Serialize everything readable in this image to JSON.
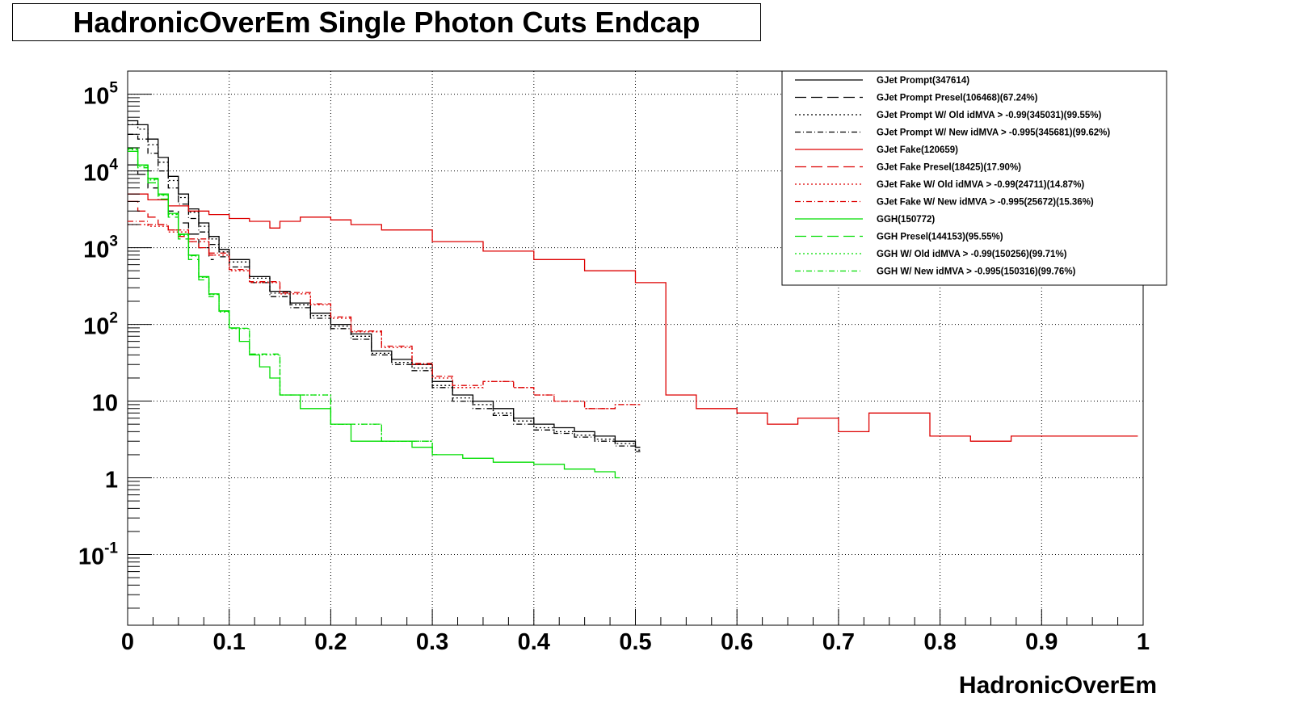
{
  "chart_data": {
    "type": "line",
    "title": "HadronicOverEm Single Photon Cuts Endcap",
    "xlabel": "HadronicOverEm",
    "ylabel": "",
    "xlim": [
      0,
      1
    ],
    "ylim": [
      0.012,
      200000
    ],
    "y_scale": "log",
    "grid": true,
    "legend_position": "top-right",
    "x_ticks": [
      "0",
      "0.1",
      "0.2",
      "0.3",
      "0.4",
      "0.5",
      "0.6",
      "0.7",
      "0.8",
      "0.9",
      "1"
    ],
    "y_ticks": [
      {
        "value": 0.1,
        "base": "10",
        "exp": "-1"
      },
      {
        "value": 1,
        "base": "1",
        "exp": ""
      },
      {
        "value": 10,
        "base": "10",
        "exp": ""
      },
      {
        "value": 100,
        "base": "10",
        "exp": "2"
      },
      {
        "value": 1000,
        "base": "10",
        "exp": "3"
      },
      {
        "value": 10000,
        "base": "10",
        "exp": "4"
      },
      {
        "value": 100000,
        "base": "10",
        "exp": "5"
      }
    ],
    "series": [
      {
        "name": "GJet Prompt(347614)",
        "color": "#000000",
        "dash": "solid",
        "x": [
          0.0,
          0.01,
          0.02,
          0.03,
          0.04,
          0.05,
          0.06,
          0.07,
          0.08,
          0.09,
          0.1,
          0.12,
          0.14,
          0.16,
          0.18,
          0.2,
          0.22,
          0.24,
          0.26,
          0.28,
          0.3,
          0.32,
          0.34,
          0.36,
          0.38,
          0.4,
          0.42,
          0.44,
          0.46,
          0.48,
          0.5
        ],
        "y": [
          45000,
          40000,
          26000,
          15000,
          8500,
          5000,
          3200,
          2100,
          1400,
          950,
          700,
          420,
          270,
          190,
          140,
          100,
          75,
          45,
          35,
          30,
          18,
          12,
          10,
          8,
          6,
          5,
          4.5,
          4,
          3.5,
          3,
          2.5
        ]
      },
      {
        "name": "GJet Prompt Presel(106468)(67.24%)",
        "color": "#000000",
        "dash": "long-dash",
        "x": [
          0.0,
          0.01,
          0.02,
          0.03,
          0.04,
          0.05,
          0.06,
          0.07,
          0.08
        ],
        "y": [
          12000,
          9000,
          6000,
          4200,
          3000,
          2100,
          1500,
          1000,
          700
        ]
      },
      {
        "name": "GJet Prompt W/ Old idMVA > -0.99(345031)(99.55%)",
        "color": "#000000",
        "dash": "dotted",
        "x": [
          0.0,
          0.01,
          0.02,
          0.03,
          0.04,
          0.05,
          0.06,
          0.07,
          0.08,
          0.09,
          0.1,
          0.12,
          0.14,
          0.16,
          0.18,
          0.2,
          0.22,
          0.24,
          0.26,
          0.28,
          0.3,
          0.32,
          0.34,
          0.36,
          0.38,
          0.4,
          0.42,
          0.44,
          0.46,
          0.48,
          0.5
        ],
        "y": [
          40000,
          35000,
          22000,
          13000,
          7500,
          4500,
          2900,
          1900,
          1300,
          880,
          650,
          400,
          255,
          180,
          130,
          95,
          70,
          42,
          32,
          27,
          16,
          11,
          9,
          7,
          5.5,
          4.5,
          4,
          3.6,
          3.2,
          2.8,
          2.3
        ]
      },
      {
        "name": "GJet Prompt W/ New idMVA > -0.995(345681)(99.62%)",
        "color": "#000000",
        "dash": "dash-dot",
        "x": [
          0.0,
          0.01,
          0.02,
          0.03,
          0.04,
          0.05,
          0.06,
          0.07,
          0.08,
          0.09,
          0.1,
          0.12,
          0.14,
          0.16,
          0.18,
          0.2,
          0.22,
          0.24,
          0.26,
          0.28,
          0.3,
          0.32,
          0.34,
          0.36,
          0.38,
          0.4,
          0.42,
          0.44,
          0.46,
          0.48,
          0.5
        ],
        "y": [
          30000,
          26000,
          17000,
          10000,
          6000,
          3700,
          2400,
          1600,
          1100,
          760,
          560,
          350,
          230,
          165,
          120,
          88,
          64,
          40,
          30,
          25,
          15,
          10,
          8,
          6.5,
          5,
          4.2,
          3.8,
          3.4,
          3,
          2.6,
          2.2
        ]
      },
      {
        "name": "GJet Fake(120659)",
        "color": "#dd0000",
        "dash": "solid",
        "x": [
          0.0,
          0.02,
          0.04,
          0.06,
          0.08,
          0.1,
          0.12,
          0.14,
          0.15,
          0.17,
          0.18,
          0.2,
          0.22,
          0.25,
          0.3,
          0.35,
          0.4,
          0.45,
          0.5,
          0.53,
          0.56,
          0.6,
          0.63,
          0.66,
          0.7,
          0.73,
          0.79,
          0.83,
          0.87,
          0.93,
          0.99
        ],
        "y": [
          5000,
          4200,
          3500,
          3000,
          2700,
          2400,
          2200,
          1800,
          2200,
          2500,
          2500,
          2300,
          2000,
          1700,
          1200,
          900,
          700,
          500,
          350,
          12,
          8,
          7,
          5,
          6,
          4,
          7,
          3.5,
          3,
          3.5,
          3.5,
          3.5
        ]
      },
      {
        "name": "GJet Fake Presel(18425)(17.90%)",
        "color": "#dd0000",
        "dash": "long-dash",
        "x": [
          0.0,
          0.01,
          0.02,
          0.03,
          0.04,
          0.05,
          0.06,
          0.07,
          0.08
        ],
        "y": [
          4000,
          3000,
          2500,
          2000,
          1700,
          1400,
          1200,
          1000,
          800
        ]
      },
      {
        "name": "GJet Fake W/ Old idMVA > -0.99(24711)(14.87%)",
        "color": "#dd0000",
        "dash": "dotted",
        "x": [
          0.0,
          0.02,
          0.04,
          0.06,
          0.08,
          0.1,
          0.12,
          0.15,
          0.18,
          0.2,
          0.22,
          0.25,
          0.28,
          0.3,
          0.32,
          0.35,
          0.38,
          0.4,
          0.42,
          0.45,
          0.48,
          0.5
        ],
        "y": [
          2000,
          1900,
          1600,
          1200,
          800,
          500,
          350,
          250,
          180,
          120,
          80,
          50,
          30,
          20,
          15,
          18,
          15,
          12,
          10,
          8,
          9,
          9
        ]
      },
      {
        "name": "GJet Fake W/ New idMVA > -0.995(25672)(15.36%)",
        "color": "#dd0000",
        "dash": "dash-dot",
        "x": [
          0.0,
          0.02,
          0.04,
          0.06,
          0.08,
          0.1,
          0.12,
          0.15,
          0.18,
          0.2,
          0.22,
          0.25,
          0.28,
          0.3,
          0.32,
          0.35,
          0.38,
          0.4,
          0.42,
          0.45,
          0.48,
          0.5
        ],
        "y": [
          2200,
          2000,
          1700,
          1300,
          850,
          520,
          360,
          260,
          185,
          125,
          82,
          52,
          31,
          21,
          16,
          18,
          15,
          12,
          10,
          8,
          9,
          9
        ]
      },
      {
        "name": "GGH(150772)",
        "color": "#00dd00",
        "dash": "solid",
        "x": [
          0.0,
          0.01,
          0.02,
          0.03,
          0.04,
          0.05,
          0.06,
          0.07,
          0.08,
          0.09,
          0.1,
          0.11,
          0.12,
          0.13,
          0.14,
          0.15,
          0.17,
          0.2,
          0.22,
          0.25,
          0.28,
          0.3,
          0.33,
          0.36,
          0.4,
          0.43,
          0.46,
          0.48
        ],
        "y": [
          20000,
          12000,
          8000,
          5000,
          2800,
          1500,
          800,
          420,
          250,
          150,
          90,
          60,
          40,
          28,
          20,
          12,
          8,
          5,
          3,
          3,
          2.5,
          2,
          1.8,
          1.6,
          1.5,
          1.3,
          1.2,
          1
        ]
      },
      {
        "name": "GGH Presel(144153)(95.55%)",
        "color": "#00dd00",
        "dash": "long-dash",
        "x": [
          0.0,
          0.01,
          0.02,
          0.03,
          0.04,
          0.05,
          0.06,
          0.07,
          0.08
        ],
        "y": [
          18000,
          11000,
          7000,
          4300,
          2500,
          1300,
          700,
          380,
          230
        ]
      },
      {
        "name": "GGH W/ Old idMVA > -0.99(150256)(99.71%)",
        "color": "#00dd00",
        "dash": "dotted",
        "x": [
          0.0,
          0.01,
          0.02,
          0.03,
          0.04,
          0.05,
          0.06,
          0.07,
          0.08,
          0.09,
          0.1,
          0.12,
          0.15,
          0.2,
          0.25,
          0.3
        ],
        "y": [
          19000,
          11500,
          7600,
          4800,
          2700,
          1450,
          780,
          410,
          245,
          145,
          88,
          40,
          12,
          5,
          3,
          2
        ]
      },
      {
        "name": "GGH W/ New idMVA > -0.995(150316)(99.76%)",
        "color": "#00dd00",
        "dash": "dash-dot",
        "x": [
          0.0,
          0.01,
          0.02,
          0.03,
          0.04,
          0.05,
          0.06,
          0.07,
          0.08,
          0.09,
          0.1,
          0.12,
          0.15,
          0.2,
          0.25,
          0.3
        ],
        "y": [
          19500,
          11800,
          7800,
          4900,
          2750,
          1480,
          790,
          415,
          248,
          148,
          89,
          41,
          12,
          5,
          3,
          2
        ]
      }
    ]
  }
}
